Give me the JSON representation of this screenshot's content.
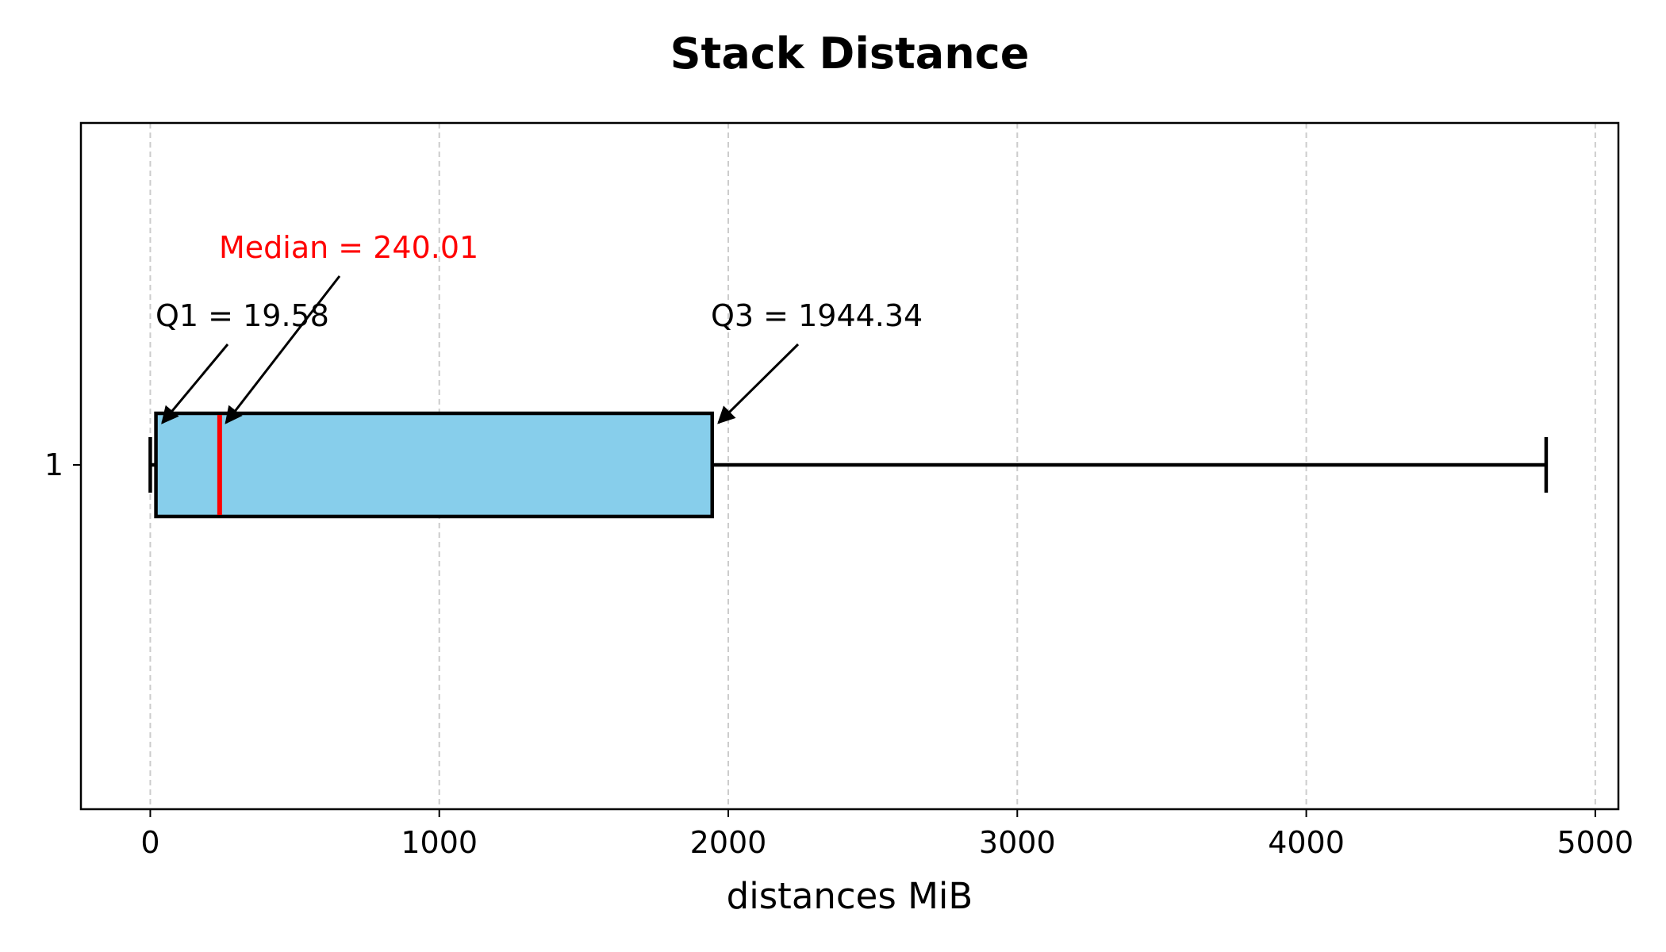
{
  "chart_data": {
    "type": "box",
    "orientation": "horizontal",
    "title": "Stack Distance",
    "xlabel": "distances MiB",
    "ylabel": "",
    "xlim": [
      -240,
      5080
    ],
    "xticks": [
      0,
      1000,
      2000,
      3000,
      4000,
      5000
    ],
    "xtick_labels": [
      "0",
      "1000",
      "2000",
      "3000",
      "4000",
      "5000"
    ],
    "ytick_labels": [
      "1"
    ],
    "grid": {
      "axis": "x",
      "style": "dashed"
    },
    "box": {
      "whisker_low": 0,
      "q1": 19.58,
      "median": 240.01,
      "q3": 1944.34,
      "whisker_high": 4830
    },
    "annotations": [
      {
        "id": "q1",
        "text": "Q1 = 19.58",
        "x": 19.58,
        "color": "#000000"
      },
      {
        "id": "median",
        "text": "Median = 240.01",
        "x": 240.01,
        "color": "#ff0000"
      },
      {
        "id": "q3",
        "text": "Q3 = 1944.34",
        "x": 1944.34,
        "color": "#000000"
      }
    ],
    "colors": {
      "box_fill": "#87ceeb",
      "median_line": "#ff0000",
      "edge": "#000000",
      "grid": "#cccccc"
    }
  }
}
